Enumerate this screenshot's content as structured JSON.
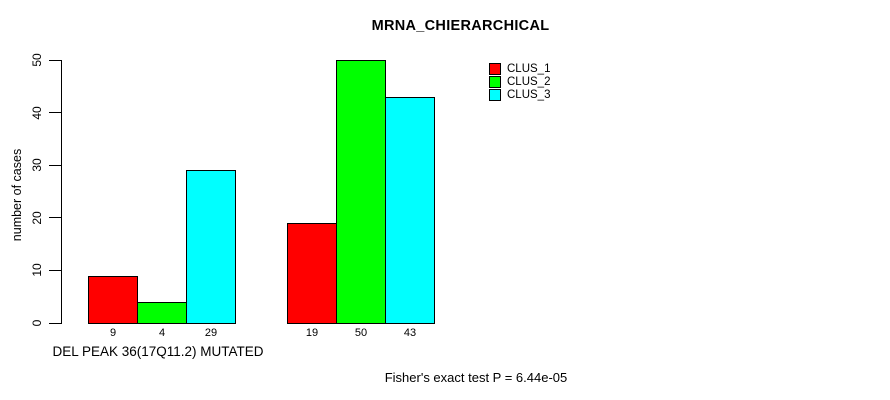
{
  "chart_data": {
    "type": "bar",
    "title": "MRNA_CHIERARCHICAL",
    "ylabel": "number of cases",
    "xlabel": "DEL PEAK 36(17Q11.2) MUTATED",
    "footer": "Fisher's exact test P = 6.44e-05",
    "ylim": [
      0,
      50
    ],
    "yticks": [
      0,
      10,
      20,
      30,
      40,
      50
    ],
    "grid": false,
    "legend_position": "top-right",
    "bar_value_labels_shown": true,
    "n_groups": 2,
    "series": [
      {
        "name": "CLUS_1",
        "color": "#FF0000",
        "values": [
          9,
          19
        ]
      },
      {
        "name": "CLUS_2",
        "color": "#00FF00",
        "values": [
          4,
          50
        ]
      },
      {
        "name": "CLUS_3",
        "color": "#00FFFF",
        "values": [
          29,
          43
        ]
      }
    ]
  }
}
